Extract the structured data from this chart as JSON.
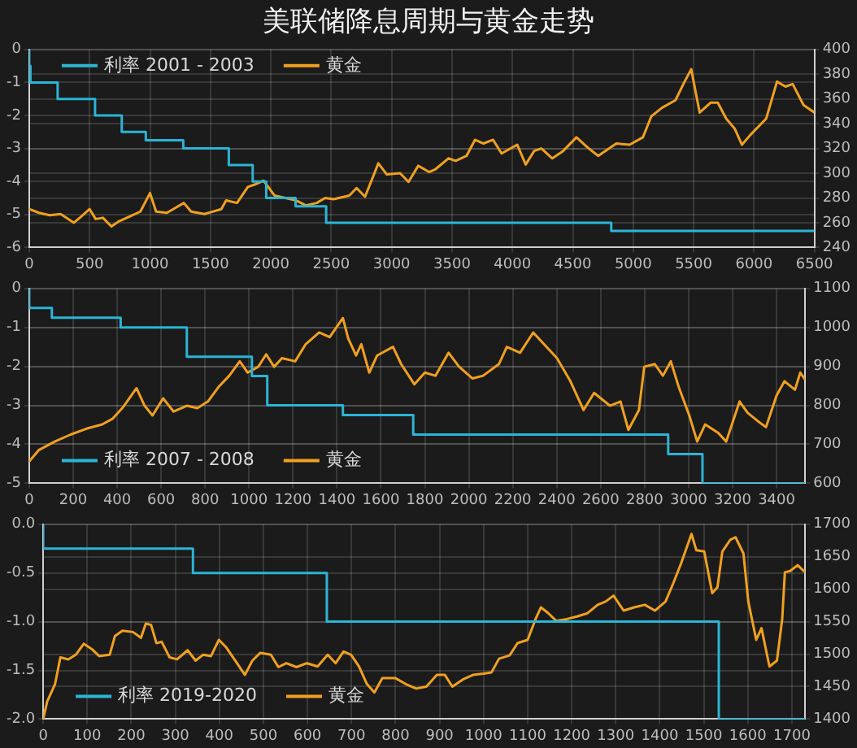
{
  "chart_data": [
    {
      "type": "line",
      "title": "美联储降息周期与黄金走势",
      "xlim": [
        0,
        6500
      ],
      "xticks": [
        0,
        500,
        1000,
        1500,
        2000,
        2500,
        3000,
        3500,
        4000,
        4500,
        5000,
        5500,
        6000,
        6500
      ],
      "ylim": [
        -6,
        0
      ],
      "yticks": [
        -6,
        -5,
        -4,
        -3,
        -2,
        -1,
        0
      ],
      "y2lim": [
        240,
        400
      ],
      "y2ticks": [
        240,
        260,
        280,
        300,
        320,
        340,
        360,
        380,
        400
      ],
      "grid": true,
      "legend": "top left",
      "marker": "none",
      "series": [
        {
          "name": "利率 2001 - 2003",
          "type": "step",
          "color": "#2bb5d6",
          "x": [
            0,
            10,
            235,
            545,
            766,
            965,
            1275,
            1652,
            1850,
            1962,
            2205,
            2458,
            4818,
            6457,
            6500
          ],
          "values": [
            0,
            -0.5,
            -1,
            -1.5,
            -2,
            -2.5,
            -2.75,
            -3,
            -3.5,
            -4,
            -4.5,
            -4.75,
            -5.25,
            -5.5,
            -5.5
          ]
        },
        {
          "name": "黄金",
          "color": "#f0a020",
          "axis": "y2",
          "x": [
            0,
            80,
            170,
            260,
            370,
            430,
            500,
            550,
            610,
            680,
            740,
            830,
            920,
            1000,
            1050,
            1140,
            1280,
            1340,
            1450,
            1590,
            1630,
            1720,
            1810,
            1870,
            1940,
            2030,
            2120,
            2210,
            2290,
            2380,
            2450,
            2520,
            2650,
            2710,
            2780,
            2890,
            2960,
            3070,
            3140,
            3220,
            3310,
            3360,
            3470,
            3530,
            3620,
            3690,
            3760,
            3840,
            3910,
            4040,
            4110,
            4180,
            4240,
            4330,
            4420,
            4530,
            4620,
            4710,
            4860,
            4970,
            5080,
            5150,
            5240,
            5350,
            5420,
            5480,
            5550,
            5640,
            5700,
            5770,
            5840,
            5900,
            5970,
            6100,
            6190,
            6260,
            6320,
            6410,
            6500
          ],
          "values": [
            271,
            268,
            266,
            267,
            260,
            265,
            271,
            263,
            264,
            257,
            261,
            265,
            269,
            284,
            269,
            268,
            276,
            269,
            267,
            271,
            278,
            276,
            289,
            291,
            294,
            282,
            280,
            278,
            274,
            276,
            280,
            279,
            282,
            288,
            281,
            308,
            299,
            300,
            293,
            306,
            301,
            303,
            312,
            310,
            314,
            327,
            324,
            327,
            316,
            323,
            307,
            318,
            320,
            312,
            318,
            329,
            321,
            314,
            324,
            323,
            329,
            346,
            353,
            359,
            373,
            384,
            349,
            357,
            357,
            344,
            336,
            323,
            331,
            344,
            374,
            370,
            372,
            355,
            349
          ]
        }
      ]
    },
    {
      "type": "line",
      "xlim": [
        0,
        3530
      ],
      "xticks": [
        0,
        200,
        400,
        600,
        800,
        1000,
        1200,
        1400,
        1600,
        1800,
        2000,
        2200,
        2400,
        2600,
        2800,
        3000,
        3200,
        3400
      ],
      "ylim": [
        -5,
        0
      ],
      "yticks": [
        -5,
        -4,
        -3,
        -2,
        -1,
        0
      ],
      "y2lim": [
        600,
        1100
      ],
      "y2ticks": [
        600,
        700,
        800,
        900,
        1000,
        1100
      ],
      "grid": true,
      "legend": "bottom left",
      "marker": "none",
      "series": [
        {
          "name": "利率 2007 - 2008",
          "type": "step",
          "color": "#2bb5d6",
          "x": [
            0,
            103,
            416,
            717,
            1013,
            1083,
            1427,
            1747,
            2907,
            3063,
            3412,
            3530
          ],
          "values": [
            0,
            -0.5,
            -0.75,
            -1,
            -1.75,
            -2.25,
            -3,
            -3.25,
            -3.75,
            -4.25,
            -5,
            -5
          ]
        },
        {
          "name": "黄金",
          "color": "#f0a020",
          "axis": "y2",
          "x": [
            0,
            43,
            116,
            188,
            260,
            332,
            380,
            428,
            488,
            525,
            561,
            609,
            657,
            717,
            765,
            813,
            861,
            910,
            958,
            994,
            1042,
            1078,
            1114,
            1150,
            1210,
            1258,
            1319,
            1367,
            1427,
            1451,
            1487,
            1511,
            1547,
            1583,
            1655,
            1692,
            1752,
            1800,
            1848,
            1908,
            1956,
            2016,
            2065,
            2137,
            2173,
            2233,
            2293,
            2329,
            2401,
            2462,
            2522,
            2570,
            2642,
            2690,
            2726,
            2774,
            2798,
            2846,
            2883,
            2919,
            2955,
            3003,
            3039,
            3075,
            3135,
            3171,
            3232,
            3268,
            3316,
            3352,
            3400,
            3436,
            3484,
            3508,
            3530
          ],
          "values": [
            656,
            685,
            707,
            725,
            740,
            751,
            766,
            796,
            844,
            799,
            774,
            818,
            784,
            799,
            793,
            810,
            847,
            876,
            913,
            884,
            899,
            931,
            899,
            921,
            913,
            957,
            987,
            975,
            1024,
            972,
            928,
            957,
            884,
            928,
            950,
            906,
            854,
            884,
            876,
            935,
            899,
            869,
            876,
            906,
            950,
            935,
            987,
            965,
            921,
            862,
            788,
            832,
            799,
            810,
            737,
            788,
            899,
            906,
            876,
            913,
            847,
            774,
            707,
            751,
            729,
            707,
            810,
            781,
            759,
            744,
            825,
            862,
            840,
            884,
            866
          ]
        }
      ]
    },
    {
      "type": "line",
      "xlim": [
        0,
        1730
      ],
      "xticks": [
        0,
        100,
        200,
        300,
        400,
        500,
        600,
        700,
        800,
        900,
        1000,
        1100,
        1200,
        1300,
        1400,
        1500,
        1600,
        1700
      ],
      "ylim": [
        -2,
        0
      ],
      "yticks": [
        {
          "value": -2,
          "label": "-2.0"
        },
        {
          "value": -1.5,
          "label": "-1.5"
        },
        {
          "value": -1,
          "label": "-1.0"
        },
        {
          "value": -0.5,
          "label": "-0.5"
        },
        {
          "value": 0,
          "label": "0.0"
        }
      ],
      "y2lim": [
        1400,
        1700
      ],
      "y2ticks": [
        1400,
        1450,
        1500,
        1550,
        1600,
        1650,
        1700
      ],
      "grid": true,
      "legend": "bottom left",
      "marker": "none",
      "series": [
        {
          "name": "利率 2019-2020",
          "type": "step",
          "color": "#2bb5d6",
          "x": [
            0,
            340,
            644,
            1534,
            1613,
            1730
          ],
          "values": [
            0,
            -0.25,
            -0.5,
            -1,
            -2,
            -2
          ]
        },
        {
          "name": "黄金",
          "color": "#f0a020",
          "axis": "y2",
          "x": [
            0,
            9,
            27,
            39,
            57,
            74,
            92,
            110,
            127,
            151,
            163,
            180,
            204,
            222,
            233,
            245,
            257,
            269,
            287,
            304,
            328,
            346,
            363,
            381,
            399,
            416,
            440,
            458,
            475,
            493,
            517,
            534,
            552,
            575,
            599,
            623,
            646,
            664,
            682,
            699,
            717,
            735,
            752,
            770,
            800,
            823,
            847,
            870,
            894,
            912,
            929,
            953,
            976,
            1000,
            1018,
            1035,
            1059,
            1077,
            1100,
            1118,
            1130,
            1147,
            1165,
            1189,
            1212,
            1236,
            1259,
            1277,
            1295,
            1318,
            1342,
            1366,
            1389,
            1413,
            1430,
            1448,
            1472,
            1483,
            1501,
            1519,
            1531,
            1542,
            1560,
            1572,
            1590,
            1601,
            1619,
            1631,
            1649,
            1666,
            1678,
            1684,
            1696,
            1713,
            1730
          ],
          "values": [
            1400,
            1427,
            1454,
            1495,
            1492,
            1499,
            1516,
            1508,
            1497,
            1499,
            1528,
            1536,
            1534,
            1525,
            1547,
            1545,
            1517,
            1519,
            1495,
            1492,
            1506,
            1490,
            1499,
            1497,
            1522,
            1510,
            1486,
            1468,
            1490,
            1502,
            1499,
            1480,
            1486,
            1480,
            1486,
            1481,
            1499,
            1486,
            1504,
            1499,
            1481,
            1454,
            1441,
            1463,
            1463,
            1454,
            1447,
            1450,
            1468,
            1468,
            1450,
            1461,
            1468,
            1470,
            1472,
            1493,
            1498,
            1517,
            1522,
            1554,
            1572,
            1563,
            1551,
            1554,
            1558,
            1563,
            1576,
            1581,
            1590,
            1567,
            1572,
            1576,
            1567,
            1581,
            1608,
            1639,
            1685,
            1660,
            1658,
            1594,
            1603,
            1658,
            1676,
            1680,
            1655,
            1581,
            1522,
            1540,
            1481,
            1490,
            1554,
            1626,
            1628,
            1637,
            1626
          ]
        }
      ]
    }
  ]
}
